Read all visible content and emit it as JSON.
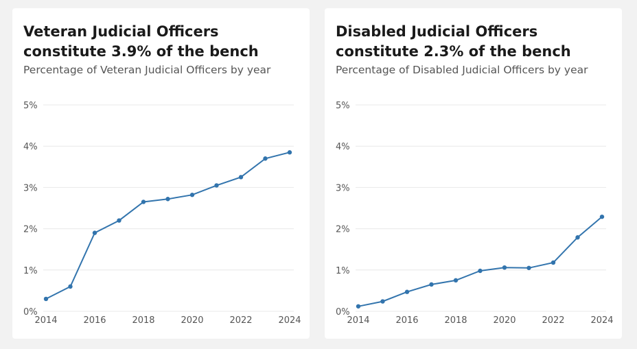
{
  "chart_data": [
    {
      "type": "line",
      "title": "Veteran Judicial Officers constitute 3.9% of the bench",
      "subtitle": "Percentage of Veteran Judicial Officers by year",
      "xlabel": "",
      "ylabel": "",
      "x": [
        2014,
        2015,
        2016,
        2017,
        2018,
        2019,
        2020,
        2021,
        2022,
        2023,
        2024
      ],
      "series": [
        {
          "values": [
            0.3,
            0.6,
            1.9,
            2.2,
            2.65,
            2.72,
            2.82,
            3.05,
            3.25,
            3.7,
            3.85
          ]
        }
      ],
      "x_ticks": [
        "2014",
        "2016",
        "2018",
        "2020",
        "2022",
        "2024"
      ],
      "x_tick_values": [
        2014,
        2016,
        2018,
        2020,
        2022,
        2024
      ],
      "y_ticks": [
        "0%",
        "1%",
        "2%",
        "3%",
        "4%",
        "5%"
      ],
      "y_tick_values": [
        0,
        1,
        2,
        3,
        4,
        5
      ],
      "xlim": [
        2014,
        2024
      ],
      "ylim": [
        0,
        5
      ],
      "grid": true,
      "color": "#3274ad"
    },
    {
      "type": "line",
      "title": "Disabled Judicial Officers constitute 2.3% of the bench",
      "subtitle": "Percentage of Disabled Judicial Officers by year",
      "xlabel": "",
      "ylabel": "",
      "x": [
        2014,
        2015,
        2016,
        2017,
        2018,
        2019,
        2020,
        2021,
        2022,
        2023,
        2024
      ],
      "series": [
        {
          "values": [
            0.12,
            0.24,
            0.47,
            0.65,
            0.75,
            0.98,
            1.06,
            1.05,
            1.18,
            1.79,
            2.29
          ]
        }
      ],
      "x_ticks": [
        "2014",
        "2016",
        "2018",
        "2020",
        "2022",
        "2024"
      ],
      "x_tick_values": [
        2014,
        2016,
        2018,
        2020,
        2022,
        2024
      ],
      "y_ticks": [
        "0%",
        "1%",
        "2%",
        "3%",
        "4%",
        "5%"
      ],
      "y_tick_values": [
        0,
        1,
        2,
        3,
        4,
        5
      ],
      "xlim": [
        2014,
        2024
      ],
      "ylim": [
        0,
        5
      ],
      "grid": true,
      "color": "#3274ad"
    }
  ]
}
